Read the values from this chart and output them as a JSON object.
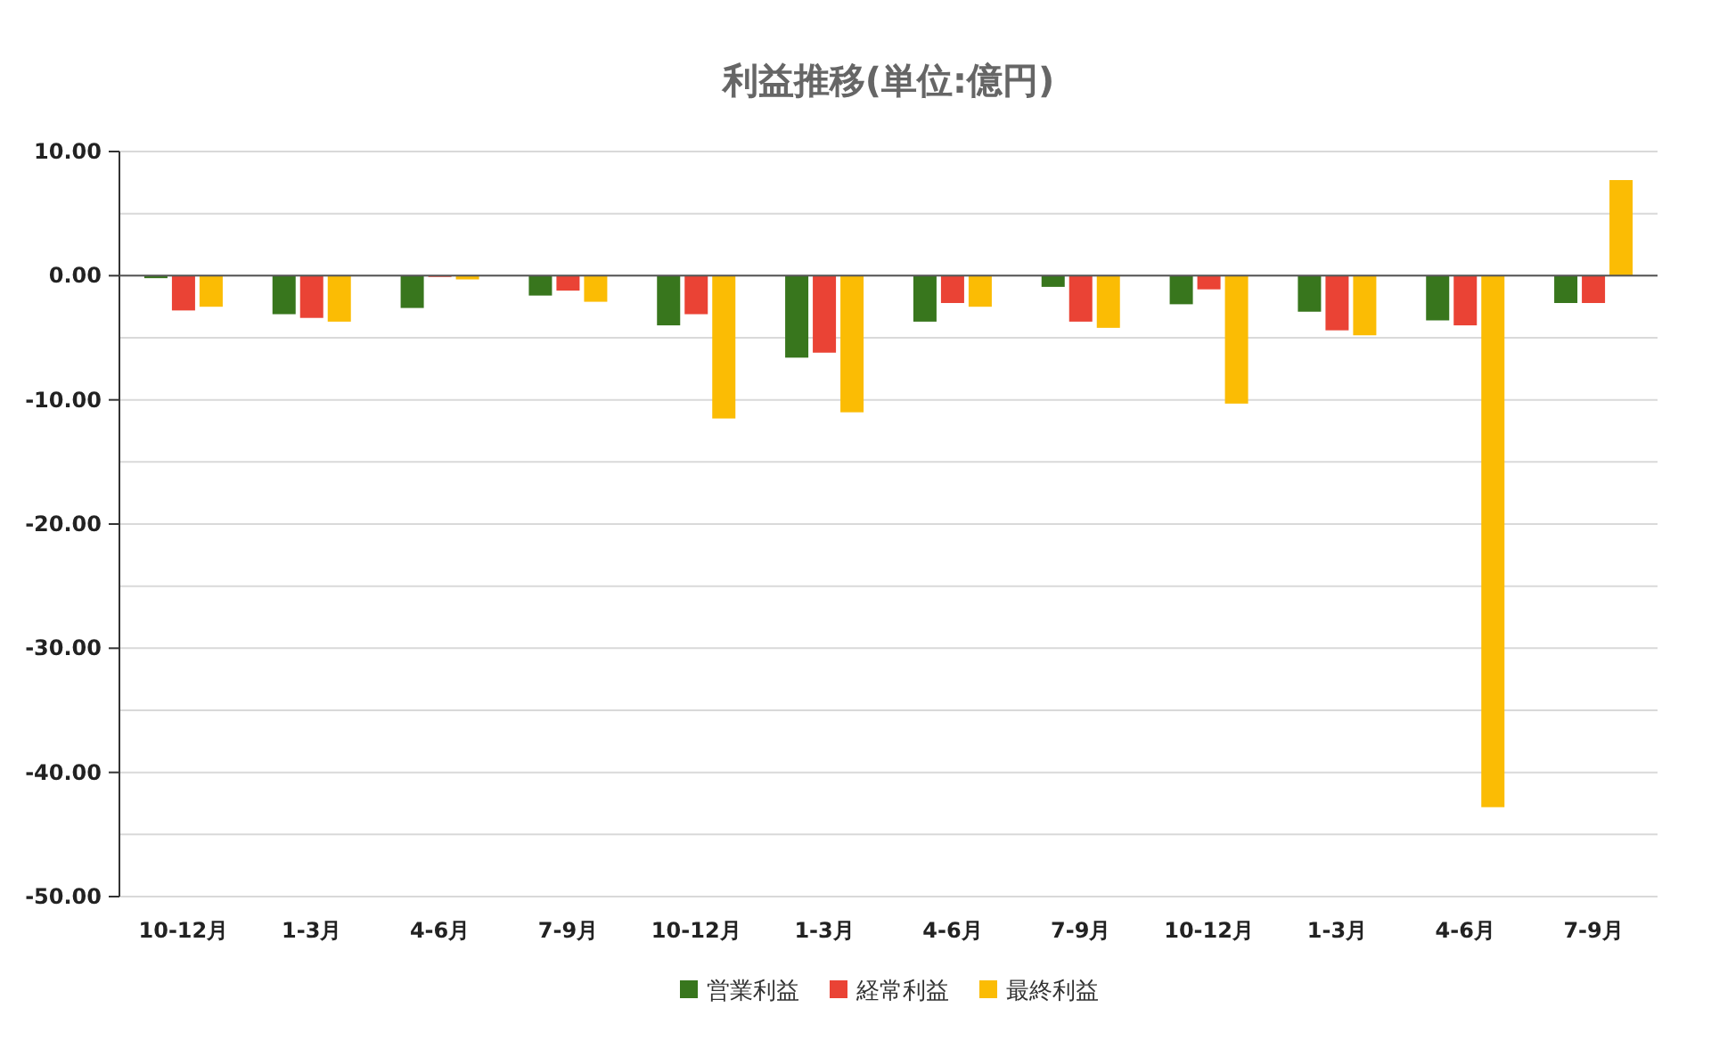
{
  "chart_data": {
    "type": "bar",
    "title": "利益推移(単位:億円)",
    "categories": [
      "10-12月",
      "1-3月",
      "4-6月",
      "7-9月",
      "10-12月",
      "1-3月",
      "4-6月",
      "7-9月",
      "10-12月",
      "1-3月",
      "4-6月",
      "7-9月"
    ],
    "series": [
      {
        "name": "営業利益",
        "color": "#38761d",
        "values": [
          -0.2,
          -3.1,
          -2.6,
          -1.6,
          -4.0,
          -6.6,
          -3.7,
          -0.9,
          -2.3,
          -2.9,
          -3.6,
          -2.2
        ]
      },
      {
        "name": "経常利益",
        "color": "#ea4335",
        "values": [
          -2.8,
          -3.4,
          -0.1,
          -1.2,
          -3.1,
          -6.2,
          -2.2,
          -3.7,
          -1.1,
          -4.4,
          -4.0,
          -2.2
        ]
      },
      {
        "name": "最終利益",
        "color": "#fbbc04",
        "values": [
          -2.5,
          -3.7,
          -0.3,
          -2.1,
          -11.5,
          -11.0,
          -2.5,
          -4.2,
          -10.3,
          -4.8,
          -42.8,
          7.7
        ]
      }
    ],
    "ylim": [
      -50,
      10
    ],
    "yticks": [
      {
        "value": 10,
        "label": "10.00"
      },
      {
        "value": 5,
        "label": null
      },
      {
        "value": 0,
        "label": "0.00"
      },
      {
        "value": -5,
        "label": null
      },
      {
        "value": -10,
        "label": "-10.00"
      },
      {
        "value": -15,
        "label": null
      },
      {
        "value": -20,
        "label": "-20.00"
      },
      {
        "value": -25,
        "label": null
      },
      {
        "value": -30,
        "label": "-30.00"
      },
      {
        "value": -35,
        "label": null
      },
      {
        "value": -40,
        "label": "-40.00"
      },
      {
        "value": -45,
        "label": null
      },
      {
        "value": -50,
        "label": "-50.00"
      }
    ],
    "grid": "y",
    "legend": "bottom"
  }
}
